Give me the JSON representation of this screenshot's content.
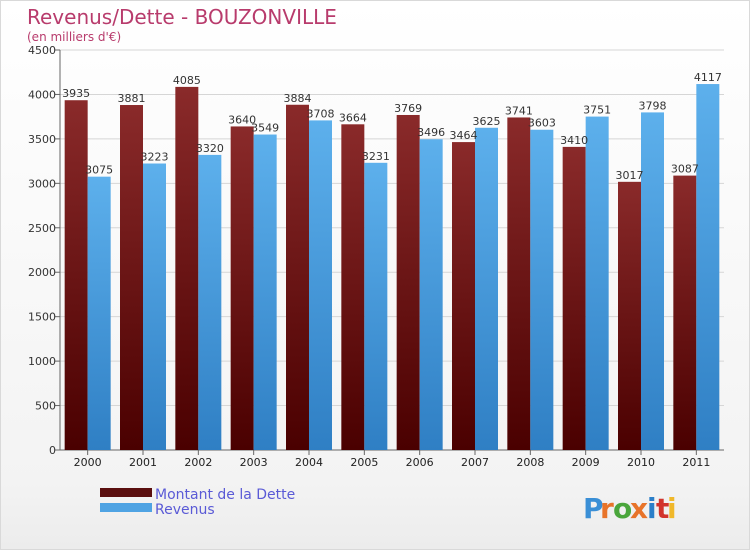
{
  "chart_data": {
    "type": "bar",
    "title": "Revenus/Dette - BOUZONVILLE",
    "subtitle": "(en milliers d'€)",
    "categories": [
      "2000",
      "2001",
      "2002",
      "2003",
      "2004",
      "2005",
      "2006",
      "2007",
      "2008",
      "2009",
      "2010",
      "2011"
    ],
    "series": [
      {
        "name": "Montant de la Dette",
        "color": "#7b1c1c",
        "values": [
          3935,
          3881,
          4085,
          3640,
          3884,
          3664,
          3769,
          3464,
          3741,
          3410,
          3017,
          3087
        ]
      },
      {
        "name": "Revenus",
        "color": "#4fa3e3",
        "values": [
          3075,
          3223,
          3320,
          3549,
          3708,
          3231,
          3496,
          3625,
          3603,
          3751,
          3798,
          4117
        ]
      }
    ],
    "yticks": [
      0,
      500,
      1000,
      1500,
      2000,
      2500,
      3000,
      3500,
      4000,
      4500
    ],
    "ylim": [
      0,
      4500
    ],
    "grid": true,
    "legend": "bottom-left"
  },
  "logo": {
    "text": "Proxiti",
    "letters": [
      "P",
      "r",
      "o",
      "x",
      "i",
      "t",
      "i"
    ],
    "colors": [
      "#3a8fd6",
      "#e8742a",
      "#4aa63c",
      "#e8742a",
      "#2b7fc9",
      "#d2342c",
      "#f0b82a"
    ]
  }
}
